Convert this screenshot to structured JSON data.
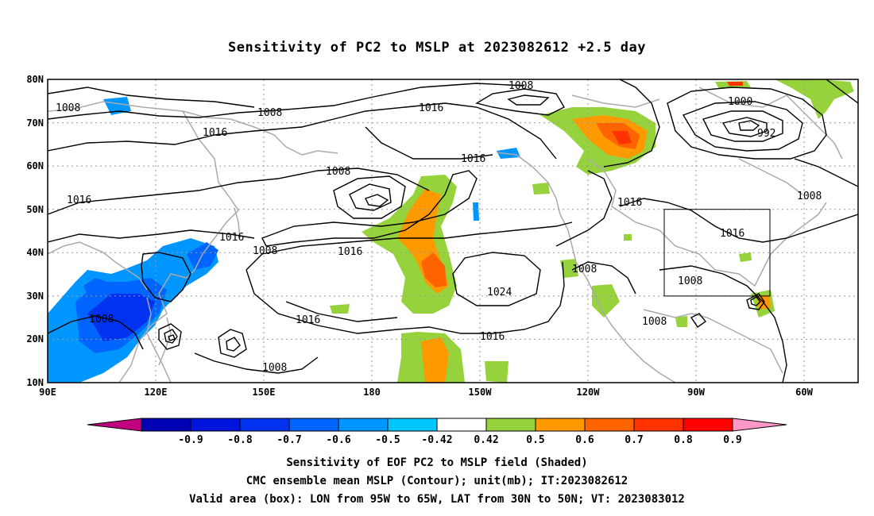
{
  "title": "Sensitivity of PC2 to MSLP at 2023082612 +2.5 day",
  "map": {
    "lat_labels": [
      "80N",
      "70N",
      "60N",
      "50N",
      "40N",
      "30N",
      "20N",
      "10N"
    ],
    "lon_labels": [
      "90E",
      "120E",
      "150E",
      "180",
      "150W",
      "120W",
      "90W",
      "60W"
    ],
    "contour_labels": [
      "1008",
      "1008",
      "1016",
      "1016",
      "1016",
      "1008",
      "1008",
      "1016",
      "1016",
      "1008",
      "1016",
      "1016",
      "1024",
      "1016",
      "1008",
      "1008",
      "1008",
      "1016",
      "1008",
      "1000",
      "992",
      "1016",
      "1008",
      "1008"
    ],
    "valid_box": {
      "lon": [
        -95,
        -65
      ],
      "lat": [
        30,
        50
      ]
    }
  },
  "colorbar": {
    "labels": [
      "-0.9",
      "-0.8",
      "-0.7",
      "-0.6",
      "-0.5",
      "-0.42",
      "0.42",
      "0.5",
      "0.6",
      "0.7",
      "0.8",
      "0.9"
    ],
    "colors": [
      "#c0007f",
      "#0000b4",
      "#0014dc",
      "#0032f0",
      "#0064ff",
      "#0096ff",
      "#00c8ff",
      "#ffffff",
      "#96d23c",
      "#ff9900",
      "#ff6400",
      "#ff3200",
      "#ff0000",
      "#ff96c8"
    ]
  },
  "captions": {
    "line1": "Sensitivity of EOF PC2 to MSLP field (Shaded)",
    "line2": "CMC ensemble mean MSLP (Contour); unit(mb); IT:2023082612",
    "line3": "Valid area (box): LON from 95W to 65W, LAT from 30N to 50N; VT: 2023083012"
  }
}
